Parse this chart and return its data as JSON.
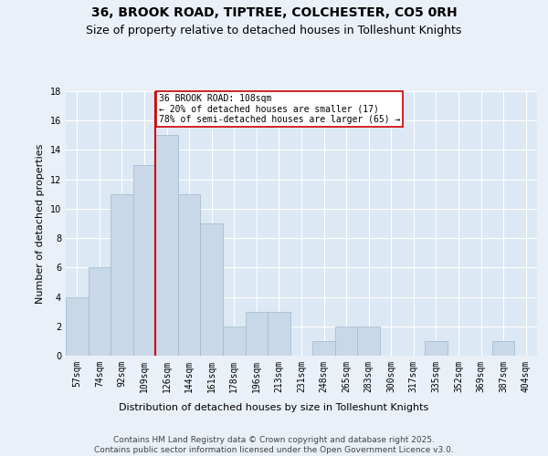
{
  "title": "36, BROOK ROAD, TIPTREE, COLCHESTER, CO5 0RH",
  "subtitle": "Size of property relative to detached houses in Tolleshunt Knights",
  "xlabel": "Distribution of detached houses by size in Tolleshunt Knights",
  "ylabel": "Number of detached properties",
  "bin_labels": [
    "57sqm",
    "74sqm",
    "92sqm",
    "109sqm",
    "126sqm",
    "144sqm",
    "161sqm",
    "178sqm",
    "196sqm",
    "213sqm",
    "231sqm",
    "248sqm",
    "265sqm",
    "283sqm",
    "300sqm",
    "317sqm",
    "335sqm",
    "352sqm",
    "369sqm",
    "387sqm",
    "404sqm"
  ],
  "bar_values": [
    4,
    6,
    11,
    13,
    15,
    11,
    9,
    2,
    3,
    3,
    0,
    1,
    2,
    2,
    0,
    0,
    1,
    0,
    0,
    1,
    0
  ],
  "bar_color": "#c8d8e8",
  "bar_edge_color": "#a0b8cc",
  "property_line_x": 3.5,
  "annotation_text": "36 BROOK ROAD: 108sqm\n← 20% of detached houses are smaller (17)\n78% of semi-detached houses are larger (65) →",
  "annotation_box_color": "#ffffff",
  "annotation_box_edge": "#cc0000",
  "line_color": "#cc0000",
  "ylim": [
    0,
    18
  ],
  "yticks": [
    0,
    2,
    4,
    6,
    8,
    10,
    12,
    14,
    16,
    18
  ],
  "footer_line1": "Contains HM Land Registry data © Crown copyright and database right 2025.",
  "footer_line2": "Contains public sector information licensed under the Open Government Licence v3.0.",
  "bg_color": "#eaf0f8",
  "plot_bg_color": "#dce8f4",
  "grid_color": "#ffffff",
  "title_fontsize": 10,
  "subtitle_fontsize": 9,
  "axis_label_fontsize": 8,
  "tick_fontsize": 7,
  "annotation_fontsize": 7,
  "footer_fontsize": 6.5
}
